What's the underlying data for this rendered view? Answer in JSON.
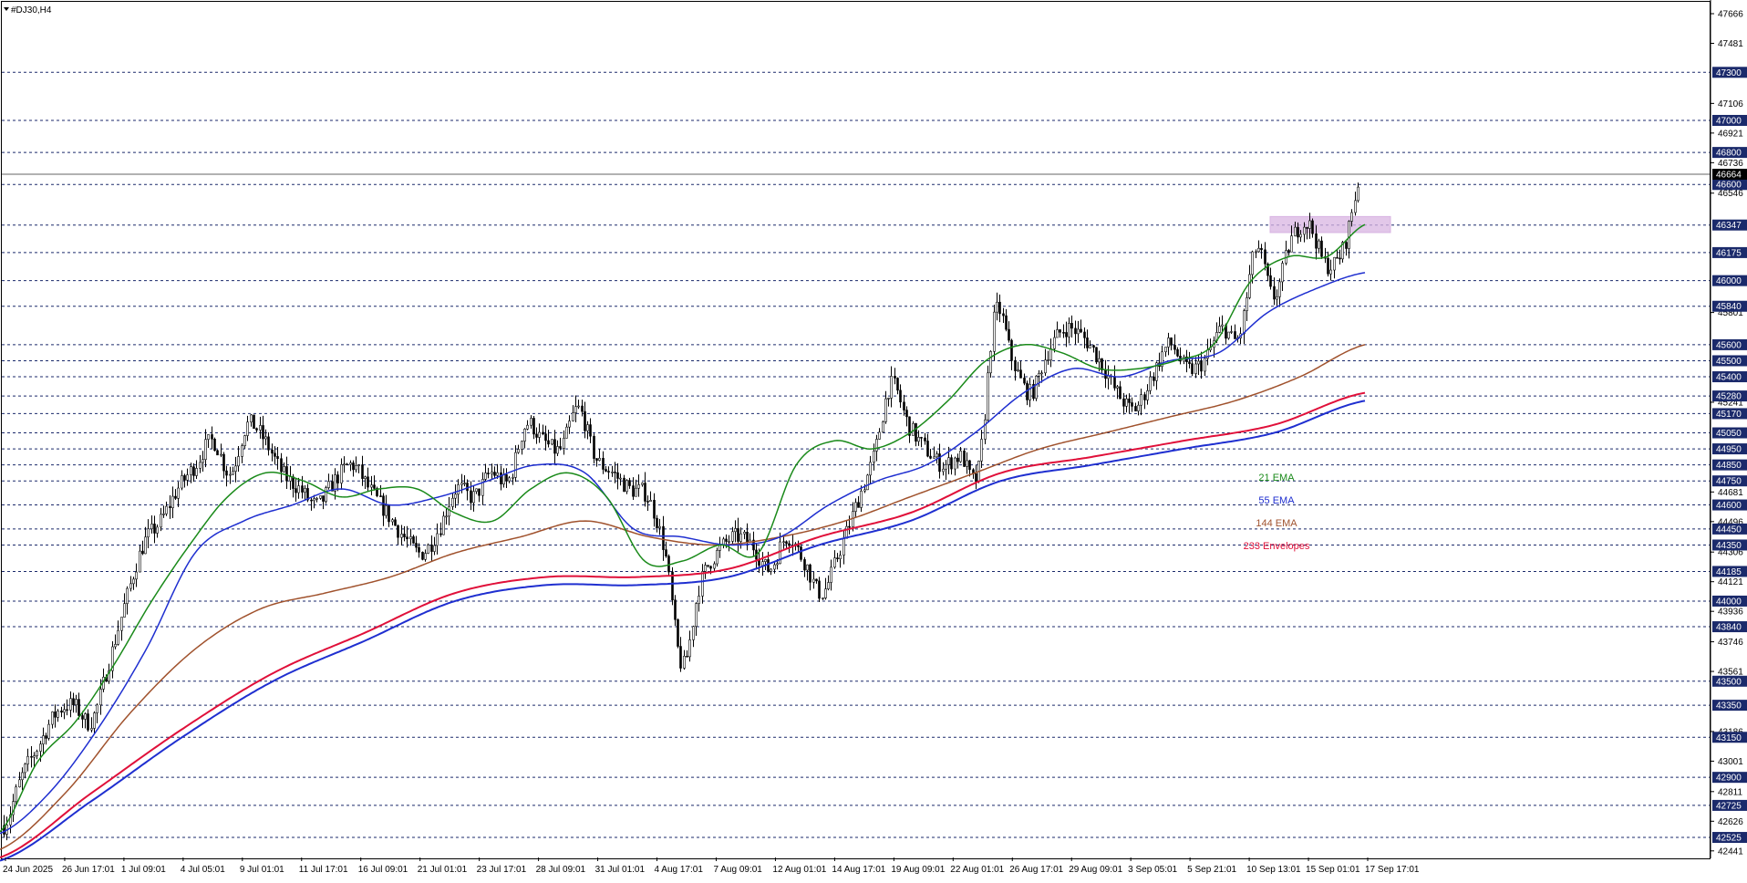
{
  "window": {
    "title": "#DJ30,H4"
  },
  "chart_data": {
    "type": "candlestick",
    "symbol": "#DJ30",
    "timeframe": "H4",
    "ylim": [
      42400,
      47740
    ],
    "grid": "dotted horizontal at price levels",
    "price_ticks": [
      47666,
      47481,
      47106,
      46921,
      46736,
      46546,
      45801,
      45241,
      44681,
      44496,
      44306,
      44121,
      43936,
      43746,
      43561,
      43186,
      43001,
      42811,
      42626,
      42441
    ],
    "level_lines": [
      47300,
      47000,
      46800,
      46600,
      46347,
      46175,
      46000,
      45840,
      45600,
      45500,
      45400,
      45280,
      45170,
      45050,
      44950,
      44850,
      44750,
      44600,
      44450,
      44350,
      44185,
      44000,
      43840,
      43500,
      43350,
      43150,
      42900,
      42725,
      42525
    ],
    "current_price": 46664,
    "x_tick_labels": [
      "24 Jun 2025",
      "26 Jun 17:01",
      "1 Jul 09:01",
      "4 Jul 05:01",
      "9 Jul 01:01",
      "11 Jul 17:01",
      "16 Jul 09:01",
      "21 Jul 01:01",
      "23 Jul 17:01",
      "28 Jul 09:01",
      "31 Jul 01:01",
      "4 Aug 17:01",
      "7 Aug 09:01",
      "12 Aug 01:01",
      "14 Aug 17:01",
      "19 Aug 09:01",
      "22 Aug 01:01",
      "26 Aug 17:01",
      "29 Aug 09:01",
      "3 Sep 05:01",
      "5 Sep 21:01",
      "10 Sep 13:01",
      "15 Sep 01:01",
      "17 Sep 17:01"
    ],
    "legend": [
      {
        "label": "21 EMA",
        "color": "#1a8a1a"
      },
      {
        "label": "55 EMA",
        "color": "#1f2fd0"
      },
      {
        "label": "144 EMA",
        "color": "#a0522d"
      },
      {
        "label": "233 Envelopes",
        "color": "#e0103a"
      }
    ],
    "highlight_zone": {
      "y_from": 46300,
      "y_to": 46400,
      "color": "#d8b4e2"
    },
    "close_path": [
      42600,
      42900,
      43100,
      43300,
      43350,
      43250,
      43600,
      44000,
      44350,
      44500,
      44700,
      44850,
      45000,
      44800,
      45100,
      45000,
      44800,
      44700,
      44600,
      44750,
      44850,
      44700,
      44550,
      44400,
      44300,
      44450,
      44700,
      44650,
      44800,
      44750,
      45100,
      45000,
      44950,
      45200,
      44900,
      44800,
      44700,
      44650,
      44300,
      43600,
      44100,
      44300,
      44400,
      44350,
      44200,
      44400,
      44250,
      44050,
      44300,
      44600,
      44900,
      45350,
      45100,
      44950,
      44850,
      44900,
      44800,
      45800,
      45500,
      45300,
      45550,
      45700,
      45650,
      45500,
      45300,
      45200,
      45400,
      45600,
      45450,
      45500,
      45700,
      45650,
      46200,
      45900,
      46250,
      46350,
      46100,
      46200,
      46650
    ],
    "ema21": [
      42560,
      43000,
      43250,
      43600,
      44000,
      44350,
      44650,
      44800,
      44750,
      44650,
      44700,
      44700,
      44550,
      44500,
      44700,
      44800,
      44650,
      44250,
      44250,
      44350,
      44300,
      44850,
      45000,
      44950,
      45050,
      45250,
      45500,
      45600,
      45550,
      45450,
      45450,
      45500,
      45600,
      46000,
      46150,
      46150,
      46350
    ],
    "ema55": [
      42550,
      42800,
      43200,
      43700,
      44300,
      44500,
      44600,
      44700,
      44600,
      44650,
      44750,
      44850,
      44800,
      44450,
      44400,
      44350,
      44400,
      44600,
      44750,
      44850,
      45050,
      45300,
      45450,
      45400,
      45500,
      45550,
      45800,
      45950,
      46050
    ],
    "ema144": [
      42450,
      42800,
      43300,
      43700,
      43950,
      44050,
      44150,
      44300,
      44400,
      44500,
      44400,
      44350,
      44400,
      44500,
      44650,
      44800,
      44950,
      45050,
      45150,
      45250,
      45400,
      45600
    ],
    "env233_upper": [
      42400,
      42800,
      43200,
      43550,
      43800,
      44050,
      44150,
      44150,
      44200,
      44400,
      44550,
      44800,
      44900,
      45000,
      45100,
      45300
    ],
    "env233_lower": [
      42380,
      42750,
      43150,
      43500,
      43750,
      44000,
      44100,
      44100,
      44150,
      44350,
      44500,
      44750,
      44850,
      44950,
      45050,
      45250
    ]
  }
}
